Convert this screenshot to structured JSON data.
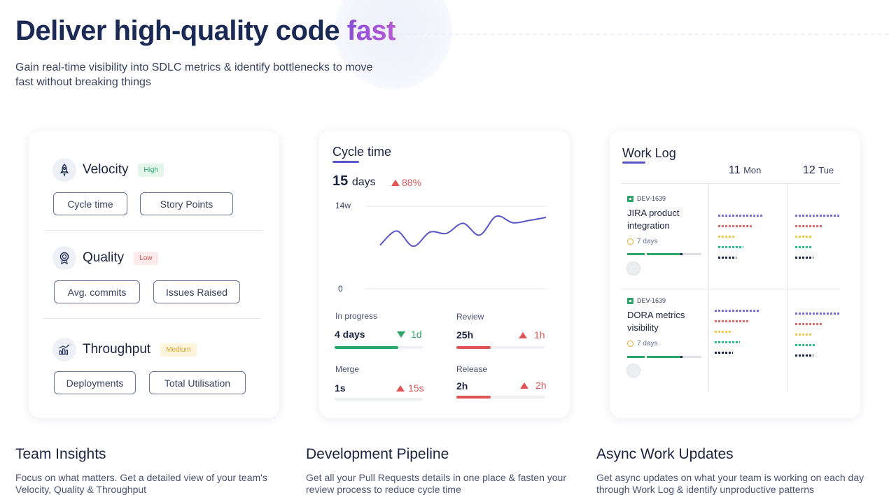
{
  "hero": {
    "title_main": "Deliver high-quality code ",
    "title_accent": "fast",
    "subtitle": "Gain real-time visibility into SDLC metrics & identify bottlenecks to move fast without breaking things"
  },
  "team_card": {
    "metrics": [
      {
        "name": "Velocity",
        "badge": "High",
        "icon": "rocket-icon",
        "pills": [
          "Cycle time",
          "Story Points"
        ]
      },
      {
        "name": "Quality",
        "badge": "Low",
        "icon": "award-icon",
        "pills": [
          "Avg. commits",
          "Issues Raised"
        ]
      },
      {
        "name": "Throughput",
        "badge": "Medium",
        "icon": "bar-chart-icon",
        "pills": [
          "Deployments",
          "Total Utilisation"
        ]
      }
    ]
  },
  "cycle_card": {
    "title": "Cycle time",
    "value": "15",
    "unit": "days",
    "change": "88%",
    "stages": [
      {
        "label": "In progress",
        "value": "4 days",
        "delta": "1d",
        "direction": "down",
        "color": "#2fa56a",
        "fill": 0.72
      },
      {
        "label": "Review",
        "value": "25h",
        "delta": "1h",
        "direction": "up",
        "color": "#e05454",
        "fill": 0.39
      },
      {
        "label": "Merge",
        "value": "1s",
        "delta": "15s",
        "direction": "up",
        "color": "#e05454",
        "fill": 0
      },
      {
        "label": "Release",
        "value": "2h",
        "delta": "2h",
        "direction": "up",
        "color": "#e05454",
        "fill": 0.39
      }
    ]
  },
  "chart_data": {
    "type": "line",
    "title": "",
    "xlabel": "",
    "ylabel": "",
    "ytick_labels": [
      "14w",
      "0"
    ],
    "ylim": [
      0,
      14
    ],
    "grid": true,
    "series": [
      {
        "values": [
          7.4,
          9.8,
          7.2,
          9.6,
          9.4,
          11.1,
          9.1,
          12.3,
          11.2,
          11.6,
          12.1
        ]
      }
    ]
  },
  "worklog_card": {
    "title": "Work Log",
    "days": [
      {
        "num": "11",
        "name": "Mon"
      },
      {
        "num": "12",
        "name": "Tue"
      }
    ],
    "tickets": [
      {
        "id": "DEV-1639",
        "name": "JIRA product integration",
        "days": "7 days"
      },
      {
        "id": "DEV-1639",
        "name": "DORA metrics visibility",
        "days": "7 days"
      }
    ],
    "activity_colors": [
      "#7b6fd6",
      "#e06b6b",
      "#f0c94a",
      "#2fbf8a",
      "#1b2a55"
    ]
  },
  "features": [
    {
      "title": "Team Insights",
      "desc": "Focus on what matters. Get a detailed view of your team's Velocity, Quality & Throughput"
    },
    {
      "title": "Development Pipeline",
      "desc": "Get all your Pull Requests details in one place & fasten your review process to reduce cycle time"
    },
    {
      "title": "Async Work Updates",
      "desc": "Get async updates on what your team is working on each day through Work Log & identify unproductive patterns"
    }
  ]
}
